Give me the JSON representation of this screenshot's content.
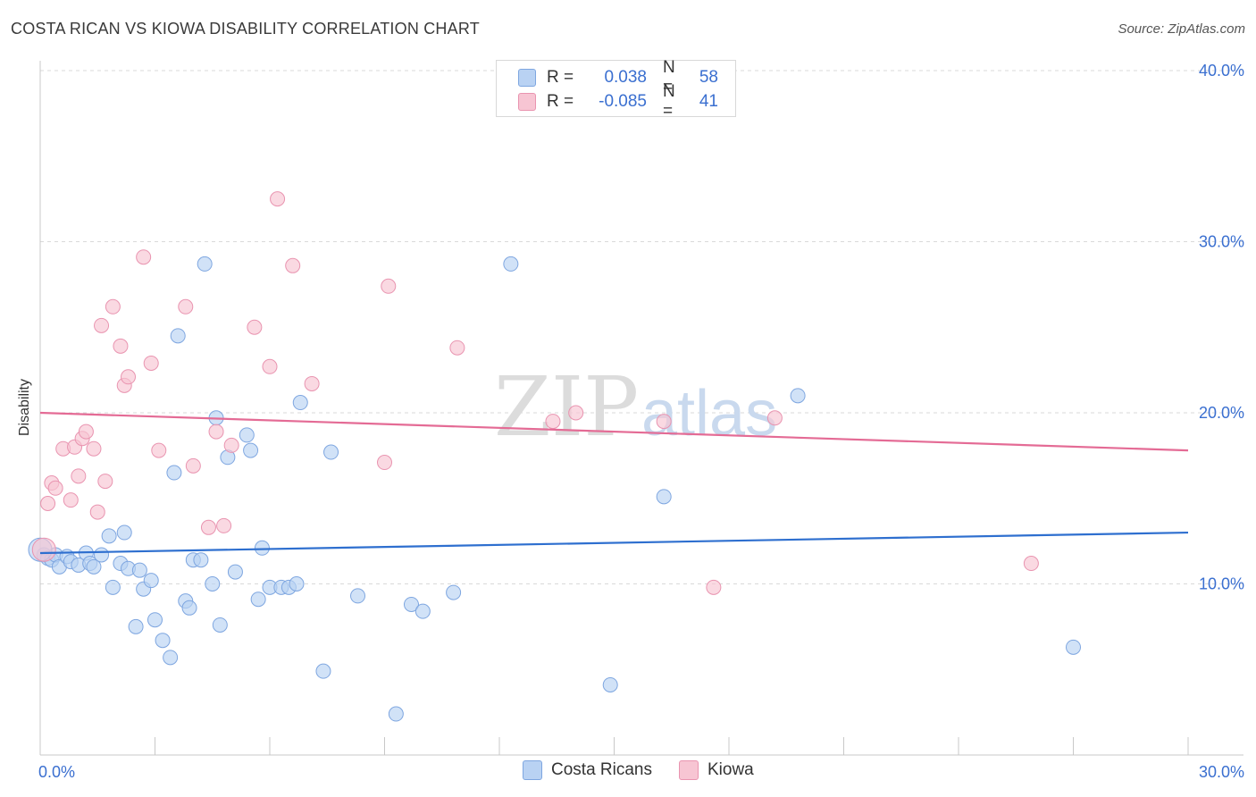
{
  "header": {
    "title": "COSTA RICAN VS KIOWA DISABILITY CORRELATION CHART",
    "source": "Source: ZipAtlas.com"
  },
  "legend_top": {
    "rows": [
      {
        "r_label": "R =",
        "r_value": "0.038",
        "n_label": "N =",
        "n_value": "58"
      },
      {
        "r_label": "R =",
        "r_value": "-0.085",
        "n_label": "N =",
        "n_value": "41"
      }
    ]
  },
  "legend_bottom": {
    "items": [
      {
        "label": "Costa Ricans"
      },
      {
        "label": "Kiowa"
      }
    ]
  },
  "watermark": {
    "part1": "ZIP",
    "part2": "atlas"
  },
  "colors": {
    "blue_fill": "#b9d2f3",
    "blue_stroke": "#7ea6e0",
    "blue_line": "#2e6fcf",
    "pink_fill": "#f7c5d3",
    "pink_stroke": "#e994b0",
    "pink_line": "#e46b95",
    "tick_text": "#3a6fd0",
    "grid": "#d9d9d9"
  },
  "chart_data": {
    "type": "scatter",
    "title": "COSTA RICAN VS KIOWA DISABILITY CORRELATION CHART",
    "xlabel": "",
    "ylabel": "Disability",
    "xlim": [
      0,
      30
    ],
    "ylim": [
      0,
      40
    ],
    "x_ticks_labels": [
      "0.0%",
      "30.0%"
    ],
    "y_ticks": [
      10,
      20,
      30,
      40
    ],
    "y_tick_labels": [
      "10.0%",
      "20.0%",
      "30.0%",
      "40.0%"
    ],
    "grid": true,
    "series": [
      {
        "name": "Costa Ricans",
        "color": "blue",
        "trend": {
          "x0": 0,
          "y0": 11.8,
          "x1": 30,
          "y1": 13.0
        },
        "points": [
          [
            0.1,
            11.7
          ],
          [
            0.2,
            11.5
          ],
          [
            0.3,
            11.4
          ],
          [
            0.4,
            11.7
          ],
          [
            0.5,
            11.0
          ],
          [
            0.7,
            11.6
          ],
          [
            0.8,
            11.3
          ],
          [
            1.0,
            11.1
          ],
          [
            1.2,
            11.8
          ],
          [
            1.3,
            11.2
          ],
          [
            1.4,
            11.0
          ],
          [
            1.6,
            11.7
          ],
          [
            1.8,
            12.8
          ],
          [
            1.9,
            9.8
          ],
          [
            2.1,
            11.2
          ],
          [
            2.2,
            13.0
          ],
          [
            2.3,
            10.9
          ],
          [
            2.5,
            7.5
          ],
          [
            2.6,
            10.8
          ],
          [
            2.7,
            9.7
          ],
          [
            2.9,
            10.2
          ],
          [
            3.0,
            7.9
          ],
          [
            3.2,
            6.7
          ],
          [
            3.4,
            5.7
          ],
          [
            3.5,
            16.5
          ],
          [
            3.6,
            24.5
          ],
          [
            3.8,
            9.0
          ],
          [
            3.9,
            8.6
          ],
          [
            4.0,
            11.4
          ],
          [
            4.2,
            11.4
          ],
          [
            4.3,
            28.7
          ],
          [
            4.5,
            10.0
          ],
          [
            4.6,
            19.7
          ],
          [
            4.7,
            7.6
          ],
          [
            4.9,
            17.4
          ],
          [
            5.1,
            10.7
          ],
          [
            5.4,
            18.7
          ],
          [
            5.5,
            17.8
          ],
          [
            5.7,
            9.1
          ],
          [
            5.8,
            12.1
          ],
          [
            6.0,
            9.8
          ],
          [
            6.3,
            9.8
          ],
          [
            6.5,
            9.8
          ],
          [
            6.7,
            10.0
          ],
          [
            6.8,
            20.6
          ],
          [
            7.4,
            4.9
          ],
          [
            7.6,
            17.7
          ],
          [
            8.3,
            9.3
          ],
          [
            9.3,
            2.4
          ],
          [
            9.7,
            8.8
          ],
          [
            10.0,
            8.4
          ],
          [
            10.8,
            9.5
          ],
          [
            12.3,
            28.7
          ],
          [
            14.9,
            4.1
          ],
          [
            16.3,
            15.1
          ],
          [
            19.8,
            21.0
          ],
          [
            27.0,
            6.3
          ],
          [
            0.0,
            12.0
          ]
        ]
      },
      {
        "name": "Kiowa",
        "color": "pink",
        "trend": {
          "x0": 0,
          "y0": 20.0,
          "x1": 30,
          "y1": 17.8
        },
        "points": [
          [
            0.1,
            12.0
          ],
          [
            0.2,
            14.7
          ],
          [
            0.3,
            15.9
          ],
          [
            0.4,
            15.6
          ],
          [
            0.6,
            17.9
          ],
          [
            0.8,
            14.9
          ],
          [
            0.9,
            18.0
          ],
          [
            1.0,
            16.3
          ],
          [
            1.1,
            18.5
          ],
          [
            1.2,
            18.9
          ],
          [
            1.4,
            17.9
          ],
          [
            1.5,
            14.2
          ],
          [
            1.6,
            25.1
          ],
          [
            1.7,
            16.0
          ],
          [
            1.9,
            26.2
          ],
          [
            2.1,
            23.9
          ],
          [
            2.2,
            21.6
          ],
          [
            2.3,
            22.1
          ],
          [
            2.7,
            29.1
          ],
          [
            2.9,
            22.9
          ],
          [
            3.1,
            17.8
          ],
          [
            3.8,
            26.2
          ],
          [
            4.0,
            16.9
          ],
          [
            4.4,
            13.3
          ],
          [
            4.6,
            18.9
          ],
          [
            4.8,
            13.4
          ],
          [
            5.0,
            18.1
          ],
          [
            5.6,
            25.0
          ],
          [
            6.0,
            22.7
          ],
          [
            6.2,
            32.5
          ],
          [
            6.6,
            28.6
          ],
          [
            7.1,
            21.7
          ],
          [
            9.0,
            17.1
          ],
          [
            9.1,
            27.4
          ],
          [
            10.9,
            23.8
          ],
          [
            13.4,
            19.5
          ],
          [
            14.0,
            20.0
          ],
          [
            16.3,
            19.5
          ],
          [
            17.6,
            9.8
          ],
          [
            19.2,
            19.7
          ],
          [
            25.9,
            11.2
          ]
        ]
      }
    ]
  }
}
